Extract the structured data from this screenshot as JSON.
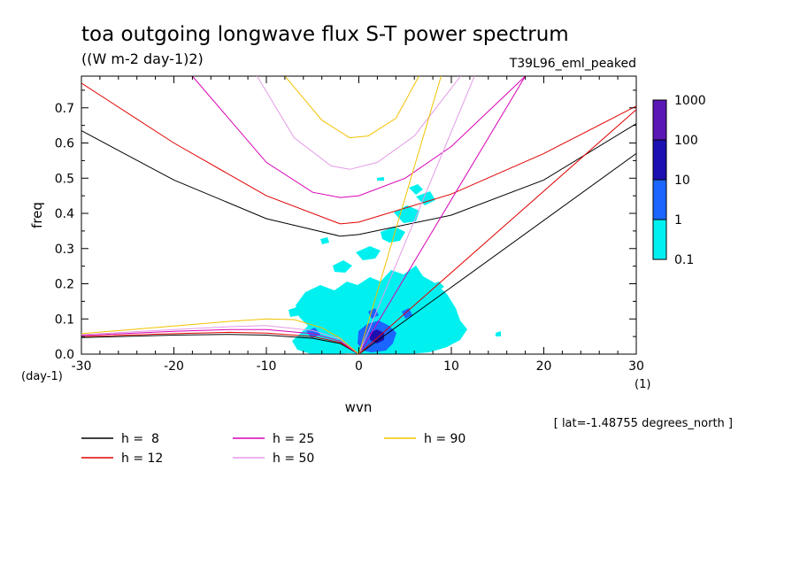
{
  "chart_data": {
    "type": "contour",
    "title": "toa outgoing longwave flux S-T power spectrum",
    "subtitle": "((W m-2 day-1)2)",
    "run_label": "T39L96_eml_peaked",
    "xlabel": "wvn",
    "ylabel": "freq",
    "x_unit": "(1)",
    "y_unit": "(day-1)",
    "footnote": "[ lat=-1.48755 degrees_north ]",
    "xlim": [
      -30,
      30
    ],
    "ylim": [
      0,
      0.79
    ],
    "x_ticks": [
      -30,
      -20,
      -10,
      0,
      10,
      20,
      30
    ],
    "x_tick_labels": [
      "-30",
      "-20",
      "-10",
      "0",
      "10",
      "20",
      "30"
    ],
    "y_ticks": [
      0,
      0.1,
      0.2,
      0.3,
      0.4,
      0.5,
      0.6,
      0.7
    ],
    "y_tick_labels": [
      "0.0",
      "0.1",
      "0.2",
      "0.3",
      "0.4",
      "0.5",
      "0.6",
      "0.7"
    ],
    "colorbar": {
      "labels": [
        "1000",
        "100",
        "10",
        "1",
        "0.1"
      ],
      "colors": [
        "#5a17b5",
        "#1c10b2",
        "#1a66ff",
        "#00f0f0"
      ]
    },
    "legend": [
      {
        "label": "h =  8",
        "color": "#000000"
      },
      {
        "label": "h = 12",
        "color": "#e00000"
      },
      {
        "label": "h = 25",
        "color": "#d900b5"
      },
      {
        "label": "h = 50",
        "color": "#e39be6"
      },
      {
        "label": "h = 90",
        "color": "#f2c200"
      }
    ],
    "dispersion_curves": [
      {
        "h": 8,
        "color": "#000000",
        "kelvin": [
          [
            0,
            0
          ],
          [
            30,
            0.57
          ]
        ],
        "inertia_gravity": [
          [
            -30,
            0.635
          ],
          [
            -20,
            0.495
          ],
          [
            -10,
            0.385
          ],
          [
            -2,
            0.335
          ],
          [
            0,
            0.34
          ],
          [
            10,
            0.395
          ],
          [
            20,
            0.495
          ],
          [
            30,
            0.655
          ]
        ],
        "rossby": [
          [
            -30,
            0.047
          ],
          [
            -20,
            0.054
          ],
          [
            -14,
            0.056
          ],
          [
            -10,
            0.054
          ],
          [
            -5,
            0.045
          ],
          [
            -2,
            0.03
          ],
          [
            0,
            0
          ]
        ]
      },
      {
        "h": 12,
        "color": "#e00000",
        "kelvin": [
          [
            0,
            0
          ],
          [
            30,
            0.695
          ]
        ],
        "inertia_gravity": [
          [
            -30,
            0.77
          ],
          [
            -20,
            0.6
          ],
          [
            -10,
            0.45
          ],
          [
            -2,
            0.37
          ],
          [
            0,
            0.375
          ],
          [
            10,
            0.455
          ],
          [
            20,
            0.57
          ],
          [
            30,
            0.705
          ]
        ],
        "rossby": [
          [
            -30,
            0.05
          ],
          [
            -20,
            0.058
          ],
          [
            -14,
            0.062
          ],
          [
            -10,
            0.06
          ],
          [
            -5,
            0.05
          ],
          [
            -2,
            0.033
          ],
          [
            0,
            0
          ]
        ]
      },
      {
        "h": 25,
        "color": "#d900b5",
        "kelvin": [
          [
            0,
            0
          ],
          [
            18,
            0.79
          ]
        ],
        "inertia_gravity": [
          [
            -18,
            0.79
          ],
          [
            -10,
            0.545
          ],
          [
            -5,
            0.46
          ],
          [
            -2,
            0.445
          ],
          [
            0,
            0.45
          ],
          [
            5,
            0.5
          ],
          [
            10,
            0.59
          ],
          [
            18,
            0.79
          ]
        ],
        "rossby": [
          [
            -30,
            0.053
          ],
          [
            -20,
            0.065
          ],
          [
            -14,
            0.07
          ],
          [
            -10,
            0.07
          ],
          [
            -5,
            0.058
          ],
          [
            -2,
            0.037
          ],
          [
            0,
            0
          ]
        ]
      },
      {
        "h": 50,
        "color": "#e39be6",
        "kelvin": [
          [
            0,
            0
          ],
          [
            12.5,
            0.79
          ]
        ],
        "inertia_gravity": [
          [
            -11,
            0.79
          ],
          [
            -7,
            0.615
          ],
          [
            -3,
            0.535
          ],
          [
            -1,
            0.525
          ],
          [
            2,
            0.545
          ],
          [
            6,
            0.62
          ],
          [
            11,
            0.79
          ]
        ],
        "rossby": [
          [
            -30,
            0.055
          ],
          [
            -20,
            0.07
          ],
          [
            -14,
            0.078
          ],
          [
            -10,
            0.081
          ],
          [
            -5,
            0.067
          ],
          [
            -2,
            0.043
          ],
          [
            0,
            0
          ]
        ]
      },
      {
        "h": 90,
        "color": "#f2c200",
        "kelvin": [
          [
            0,
            0
          ],
          [
            8.9,
            0.79
          ]
        ],
        "inertia_gravity": [
          [
            -8,
            0.79
          ],
          [
            -4,
            0.665
          ],
          [
            -1,
            0.615
          ],
          [
            1,
            0.62
          ],
          [
            4,
            0.67
          ],
          [
            6.5,
            0.79
          ]
        ],
        "rossby": [
          [
            -30,
            0.058
          ],
          [
            -20,
            0.08
          ],
          [
            -14,
            0.093
          ],
          [
            -10,
            0.1
          ],
          [
            -7,
            0.098
          ],
          [
            -4,
            0.075
          ],
          [
            -2,
            0.045
          ],
          [
            0,
            0
          ]
        ]
      }
    ]
  }
}
